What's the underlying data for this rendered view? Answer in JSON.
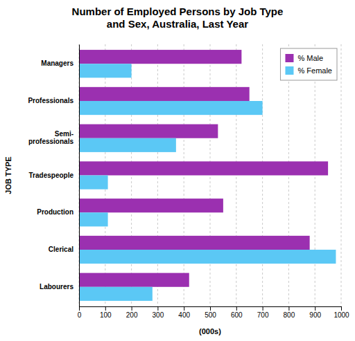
{
  "chart_data": {
    "type": "bar",
    "orientation": "horizontal",
    "title": "Number of Employed Persons by Job Type\nand Sex, Australia, Last Year",
    "categories": [
      "Managers",
      "Professionals",
      "Semi-\nprofessionals",
      "Tradespeople",
      "Production",
      "Clerical",
      "Labourers"
    ],
    "series": [
      {
        "name": "% Male",
        "color": "#9B30B0",
        "values": [
          620,
          650,
          530,
          950,
          550,
          880,
          420
        ]
      },
      {
        "name": "% Female",
        "color": "#5BC8F5",
        "values": [
          200,
          700,
          370,
          110,
          110,
          980,
          280
        ]
      }
    ],
    "xlabel": "(000s)",
    "ylabel": "JOB TYPE",
    "xlim": [
      0,
      1000
    ],
    "xticks": [
      0,
      100,
      200,
      300,
      400,
      500,
      600,
      700,
      800,
      900,
      1000
    ],
    "grid": true,
    "legend": "upper right"
  }
}
